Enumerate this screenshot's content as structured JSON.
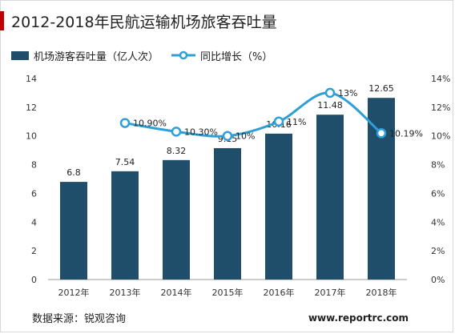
{
  "title": "2012-2018年民航运输机场旅客吞吐量",
  "source": "数据来源：锐观咨询",
  "site": "www.reportrc.com",
  "colors": {
    "bar": "#1f4e6b",
    "line": "#2e9fd8",
    "accent": "#c00000"
  },
  "chart_data": {
    "type": "bar",
    "categories": [
      "2012年",
      "2013年",
      "2014年",
      "2015年",
      "2016年",
      "2017年",
      "2018年"
    ],
    "series": [
      {
        "name": "机场游客吞吐量（亿人次）",
        "type": "bar",
        "axis": "left",
        "values": [
          6.8,
          7.54,
          8.32,
          9.15,
          10.16,
          11.48,
          12.65
        ],
        "labels": [
          "6.8",
          "7.54",
          "8.32",
          "9.15",
          "10.16",
          "11.48",
          "12.65"
        ]
      },
      {
        "name": "同比增长（%）",
        "type": "line",
        "axis": "right",
        "values": [
          null,
          10.9,
          10.3,
          10.0,
          11.0,
          13.0,
          10.19
        ],
        "labels": [
          "",
          "10.90%",
          "10.30%",
          "10%",
          "11%",
          "13%",
          "10.19%"
        ]
      }
    ],
    "y_left": {
      "min": 0,
      "max": 14,
      "ticks": [
        "0",
        "2",
        "4",
        "6",
        "8",
        "10",
        "12",
        "14"
      ]
    },
    "y_right": {
      "min": 0,
      "max": 14,
      "ticks": [
        "0%",
        "2%",
        "4%",
        "6%",
        "8%",
        "10%",
        "12%",
        "14%"
      ]
    },
    "grid": false,
    "legend": "top-left"
  }
}
